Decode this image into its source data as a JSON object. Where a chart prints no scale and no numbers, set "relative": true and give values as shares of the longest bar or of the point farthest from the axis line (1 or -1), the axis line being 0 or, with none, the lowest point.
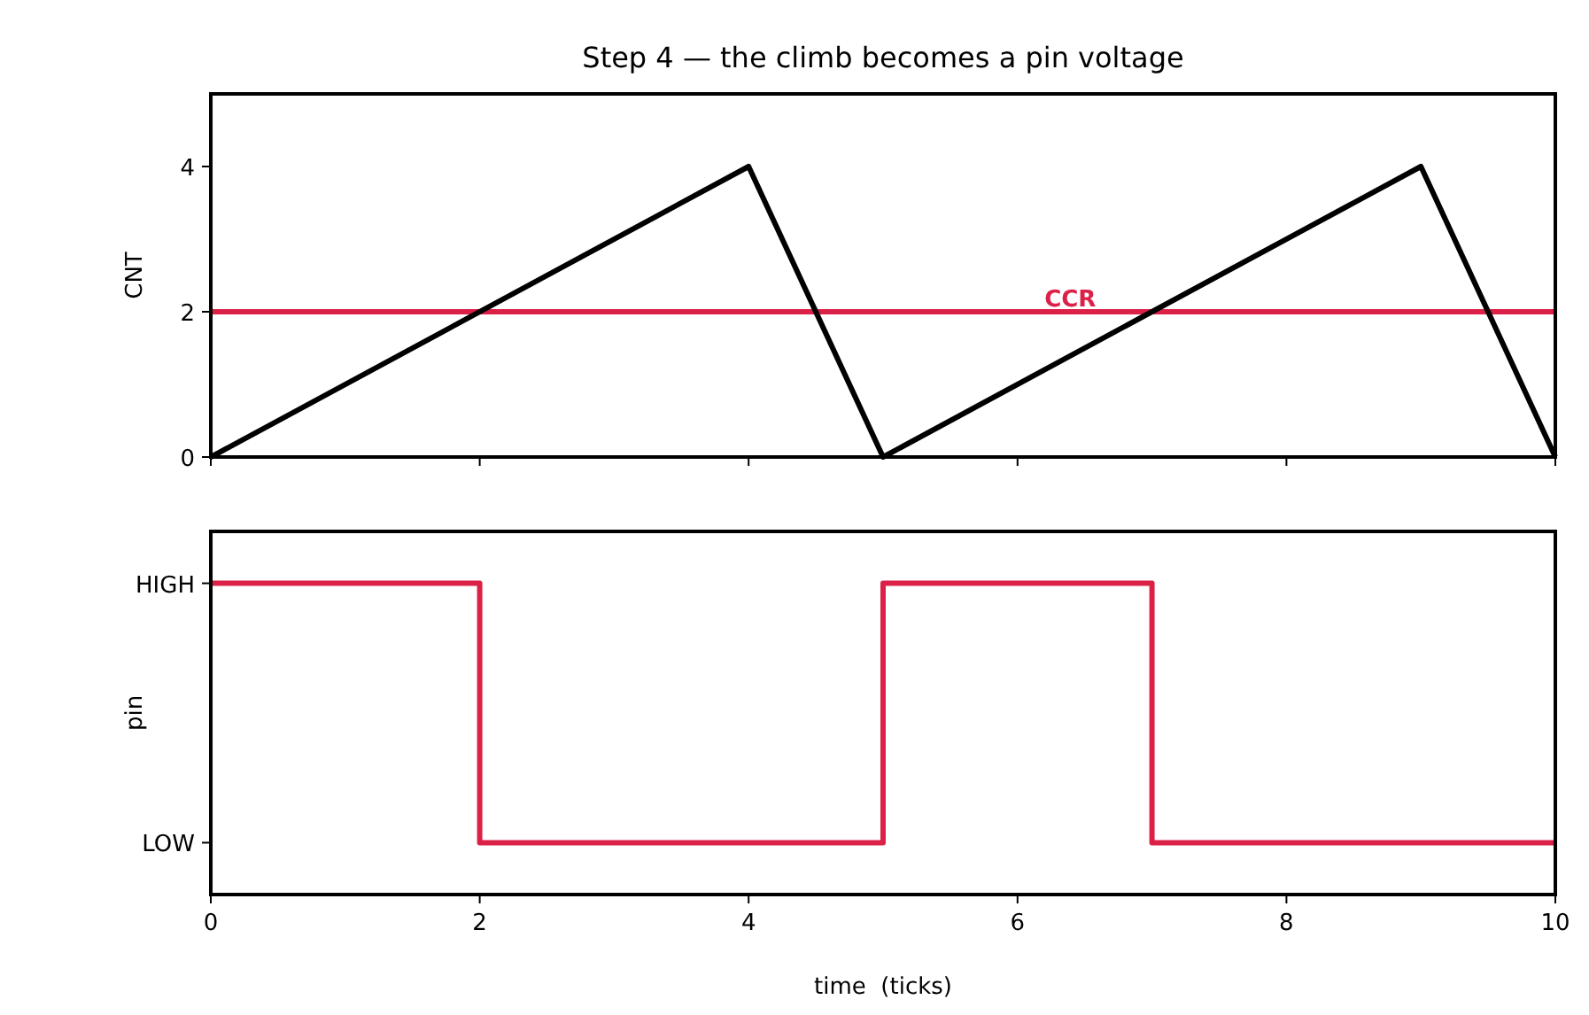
{
  "chart_data": [
    {
      "type": "line",
      "title": "Step 4 — the climb becomes a pin voltage",
      "ylabel": "CNT",
      "x": [
        0,
        4,
        5,
        9,
        10
      ],
      "series": [
        {
          "color": "#000000",
          "values": [
            0,
            4,
            0,
            4,
            0
          ]
        }
      ],
      "xlim": [
        0,
        10
      ],
      "xticks": [
        0,
        2,
        4,
        6,
        8,
        10
      ],
      "ylim": [
        0,
        5
      ],
      "yticks": [
        0,
        2,
        4
      ],
      "tick_labels": "y",
      "ref_lines": [
        {
          "axis": "y",
          "value": 2,
          "label": "CCR",
          "color": "#dc2149"
        }
      ],
      "marker": "none",
      "line_style": "solid"
    },
    {
      "type": "step",
      "ylabel": "pin",
      "xlabel": "time  (ticks)",
      "x": [
        0,
        2,
        5,
        7,
        10
      ],
      "series": [
        {
          "color": "#dc2149",
          "values": [
            1,
            0,
            1,
            0,
            0
          ]
        }
      ],
      "xlim": [
        0,
        10
      ],
      "xticks": [
        0,
        2,
        4,
        6,
        8,
        10
      ],
      "relative": true,
      "annotations": [
        "HIGH",
        "LOW"
      ],
      "marker": "none",
      "line_style": "solid"
    }
  ]
}
